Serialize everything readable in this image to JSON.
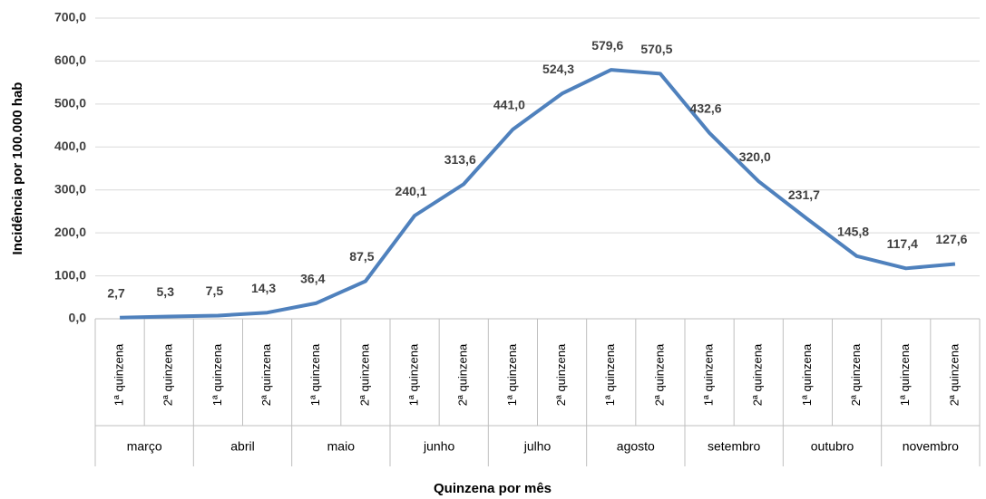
{
  "chart_data": {
    "type": "line",
    "y_label": "Incidência por 100.000 hab",
    "x_label": "Quinzena por mês",
    "categories": [
      "1ª quinzena",
      "2ª quinzena",
      "1ª quinzena",
      "2ª quinzena",
      "1ª quinzena",
      "2ª quinzena",
      "1ª quinzena",
      "2ª quinzena",
      "1ª quinzena",
      "2ª quinzena",
      "1ª quinzena",
      "2ª quinzena",
      "1ª quinzena",
      "2ª quinzena",
      "1ª quinzena",
      "2ª quinzena",
      "1ª quinzena",
      "2ª quinzena"
    ],
    "groups": [
      "março",
      "abril",
      "maio",
      "junho",
      "julho",
      "agosto",
      "setembro",
      "outubro",
      "novembro"
    ],
    "values": [
      2.7,
      5.3,
      7.5,
      14.3,
      36.4,
      87.5,
      240.1,
      313.6,
      441.0,
      524.3,
      579.6,
      570.5,
      432.6,
      320.0,
      231.7,
      145.8,
      117.4,
      127.6
    ],
    "value_labels": [
      "2,7",
      "5,3",
      "7,5",
      "14,3",
      "36,4",
      "87,5",
      "240,1",
      "313,6",
      "441,0",
      "524,3",
      "579,6",
      "570,5",
      "432,6",
      "320,0",
      "231,7",
      "145,8",
      "117,4",
      "127,6"
    ],
    "color": "#4f81bd",
    "ylim": [
      0,
      700
    ],
    "yticks": [
      {
        "value": 0,
        "label": "0,0"
      },
      {
        "value": 100,
        "label": "100,0"
      },
      {
        "value": 200,
        "label": "200,0"
      },
      {
        "value": 300,
        "label": "300,0"
      },
      {
        "value": 400,
        "label": "400,0"
      },
      {
        "value": 500,
        "label": "500,0"
      },
      {
        "value": 600,
        "label": "600,0"
      },
      {
        "value": 700,
        "label": "700,0"
      }
    ],
    "grid": true
  }
}
